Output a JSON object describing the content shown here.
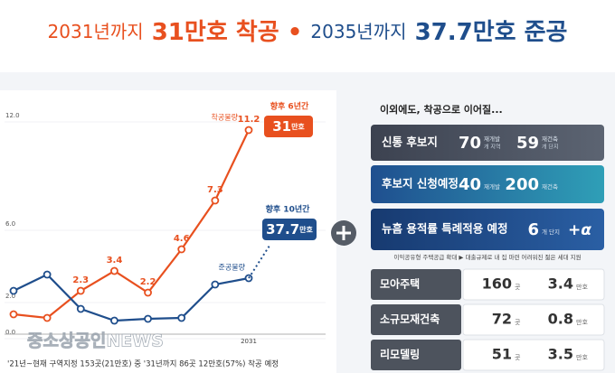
{
  "header": {
    "left_prefix": "2031년까지",
    "left_main": "31만호 착공",
    "sep": "•",
    "right_prefix": "2035년까지",
    "right_main": "37.7만호 준공"
  },
  "chart_data": {
    "type": "line",
    "categories": [
      null,
      null,
      null,
      null,
      null,
      null,
      null,
      "2031"
    ],
    "series": [
      {
        "name": "착공물량",
        "color": "#e8501f",
        "values": [
          1.0,
          0.8,
          2.3,
          3.4,
          2.2,
          4.6,
          7.3,
          11.2
        ],
        "value_labels": [
          null,
          null,
          "2.3",
          "3.4",
          "2.2",
          "4.6",
          "7.3",
          "11.2"
        ]
      },
      {
        "name": "준공물량",
        "color": "#1f4e8c",
        "values": [
          2.3,
          3.2,
          1.3,
          0.65,
          0.75,
          0.8,
          2.65,
          3.0
        ]
      }
    ],
    "ylim": [
      0,
      12
    ],
    "yticks": [
      {
        "value": 0,
        "label": "0.0"
      },
      {
        "value": 2,
        "label": "2.0"
      },
      {
        "value": 6,
        "label": "6.0"
      },
      {
        "value": 12,
        "label": "12.0"
      }
    ],
    "annotations": [
      {
        "period": "향후 6년간",
        "total": "31",
        "unit": "만호"
      },
      {
        "period": "향후 10년간",
        "total": "37.7",
        "unit": "만호"
      }
    ]
  },
  "panels": {
    "intro": "이외에도, 착공으로 이어질...",
    "big_rows": [
      {
        "label": "신통 후보지",
        "items": [
          {
            "value": "70",
            "unit": "재개발",
            "sub": "개 지역"
          },
          {
            "value": "59",
            "unit": "재건축",
            "sub": "개 단지"
          }
        ]
      },
      {
        "label": "후보지 신청예정",
        "items": [
          {
            "value": "40",
            "unit": "재개발"
          },
          {
            "value": "200",
            "unit": "재건축"
          }
        ]
      },
      {
        "label": "뉴흠 용적률 특례적용 예정",
        "items": [
          {
            "value": "6",
            "unit": "개 단지",
            "suffix": "+α"
          }
        ]
      }
    ],
    "note": "이익공유형 주택공급 확대 ▶ 대출규제로 내 집 마련 어려워진 젊은 세대 지원",
    "small_rows": [
      {
        "label": "모아주택",
        "count": "160",
        "count_unit": "곳",
        "homes": "3.4",
        "homes_unit": "만호"
      },
      {
        "label": "소규모재건축",
        "count": "72",
        "count_unit": "곳",
        "homes": "0.8",
        "homes_unit": "만호"
      },
      {
        "label": "리모델링",
        "count": "51",
        "count_unit": "곳",
        "homes": "3.5",
        "homes_unit": "만호"
      }
    ]
  },
  "footer": "'21년~현재 구역지정 153곳(21만호) 중 '31년까지 86곳 12만호(57%) 착공 예정",
  "watermark": "중소상공인NEWS"
}
